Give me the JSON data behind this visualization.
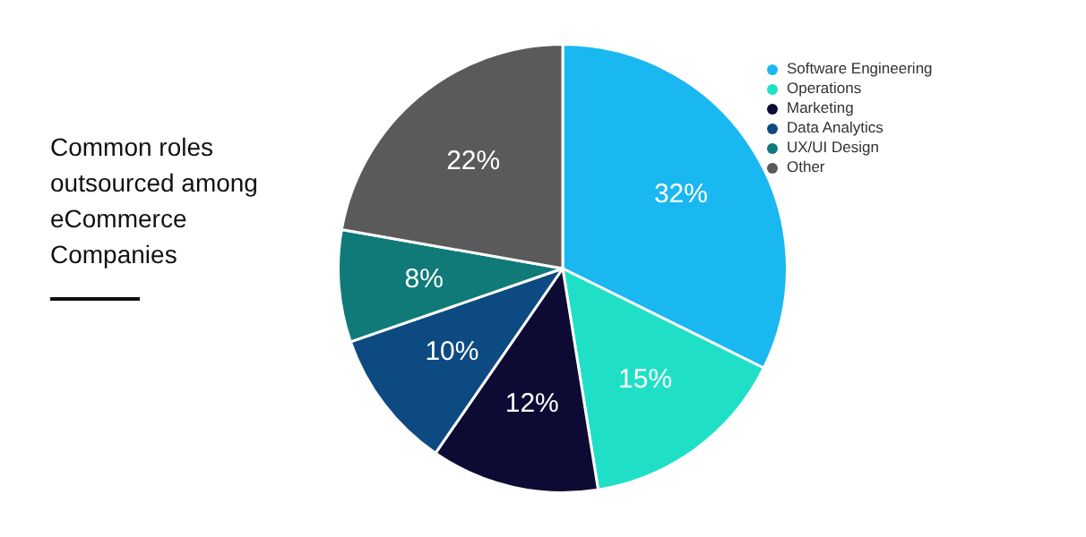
{
  "chart_data": {
    "type": "pie",
    "title": "Common roles outsourced among eCommerce Companies",
    "categories": [
      "Software Engineering",
      "Operations",
      "Marketing",
      "Data Analytics",
      "UX/UI Design",
      "Other"
    ],
    "values": [
      32,
      15,
      12,
      10,
      8,
      22
    ],
    "colors": [
      "#1ab8f0",
      "#1fe0c6",
      "#0d0b33",
      "#0e4a82",
      "#0f7a78",
      "#5a5a5a"
    ],
    "value_labels": [
      "32%",
      "15%",
      "12%",
      "10%",
      "8%",
      "22%"
    ],
    "legend": "top right"
  }
}
